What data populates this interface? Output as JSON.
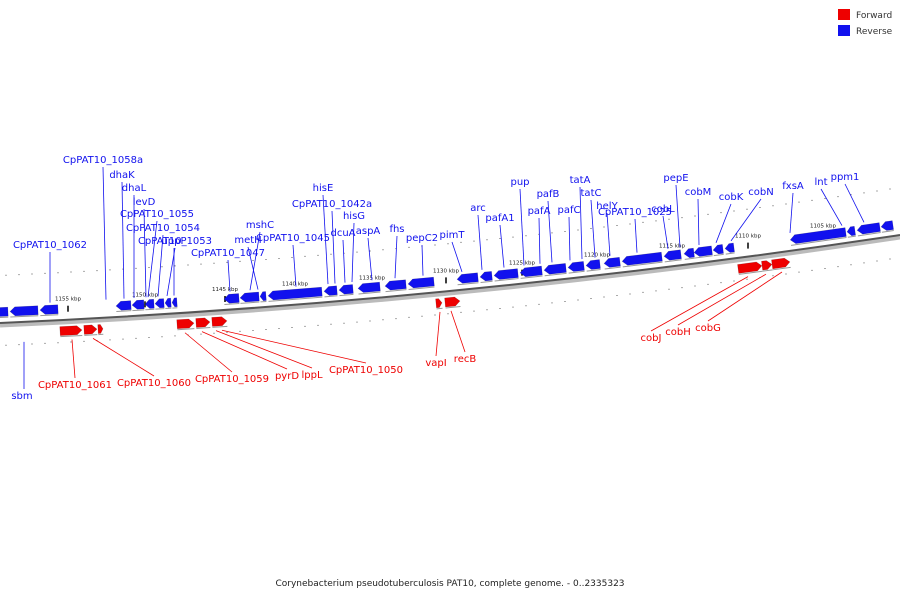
{
  "legend": {
    "forward": {
      "label": "Forward",
      "color": "#ee0000"
    },
    "reverse": {
      "label": "Reverse",
      "color": "#1111ee"
    }
  },
  "caption": "Corynebacterium pseudotuberculosis PAT10, complete genome. - 0..2335323",
  "backbone_color": "#888888",
  "ticks": [
    "1155 kbp",
    "1150 kbp",
    "1145 kbp",
    "1140 kbp",
    "1135 kbp",
    "1130 kbp",
    "1125 kbp",
    "1120 kbp",
    "1115 kbp",
    "1110 kbp",
    "1105 kbp"
  ],
  "reverse_labels": [
    "CpPAT10_1062",
    "CpPAT10_1058a",
    "dhaK",
    "dhaL",
    "levD",
    "CpPAT10_1055",
    "CpPAT10_1054",
    "CpPAT10_1053",
    "uppP",
    "CpPAT10_1047",
    "mshC",
    "metH",
    "CpPAT10_1045",
    "hisE",
    "CpPAT10_1042a",
    "hisG",
    "dcuA",
    "aspA",
    "fhs",
    "pepC2",
    "pimT",
    "arc",
    "pafA1",
    "pup",
    "pafA",
    "pafB",
    "pafC",
    "tatA",
    "tatC",
    "helY",
    "CpPAT10_1025",
    "pepE",
    "cobL",
    "cobM",
    "cobK",
    "cobN",
    "fxsA",
    "lnt",
    "ppm1",
    "sbm"
  ],
  "forward_labels": [
    "CpPAT10_1061",
    "CpPAT10_1060",
    "CpPAT10_1059",
    "pyrD",
    "lppL",
    "CpPAT10_1050",
    "vapI",
    "recB",
    "cobJ",
    "cobH",
    "cobG"
  ]
}
